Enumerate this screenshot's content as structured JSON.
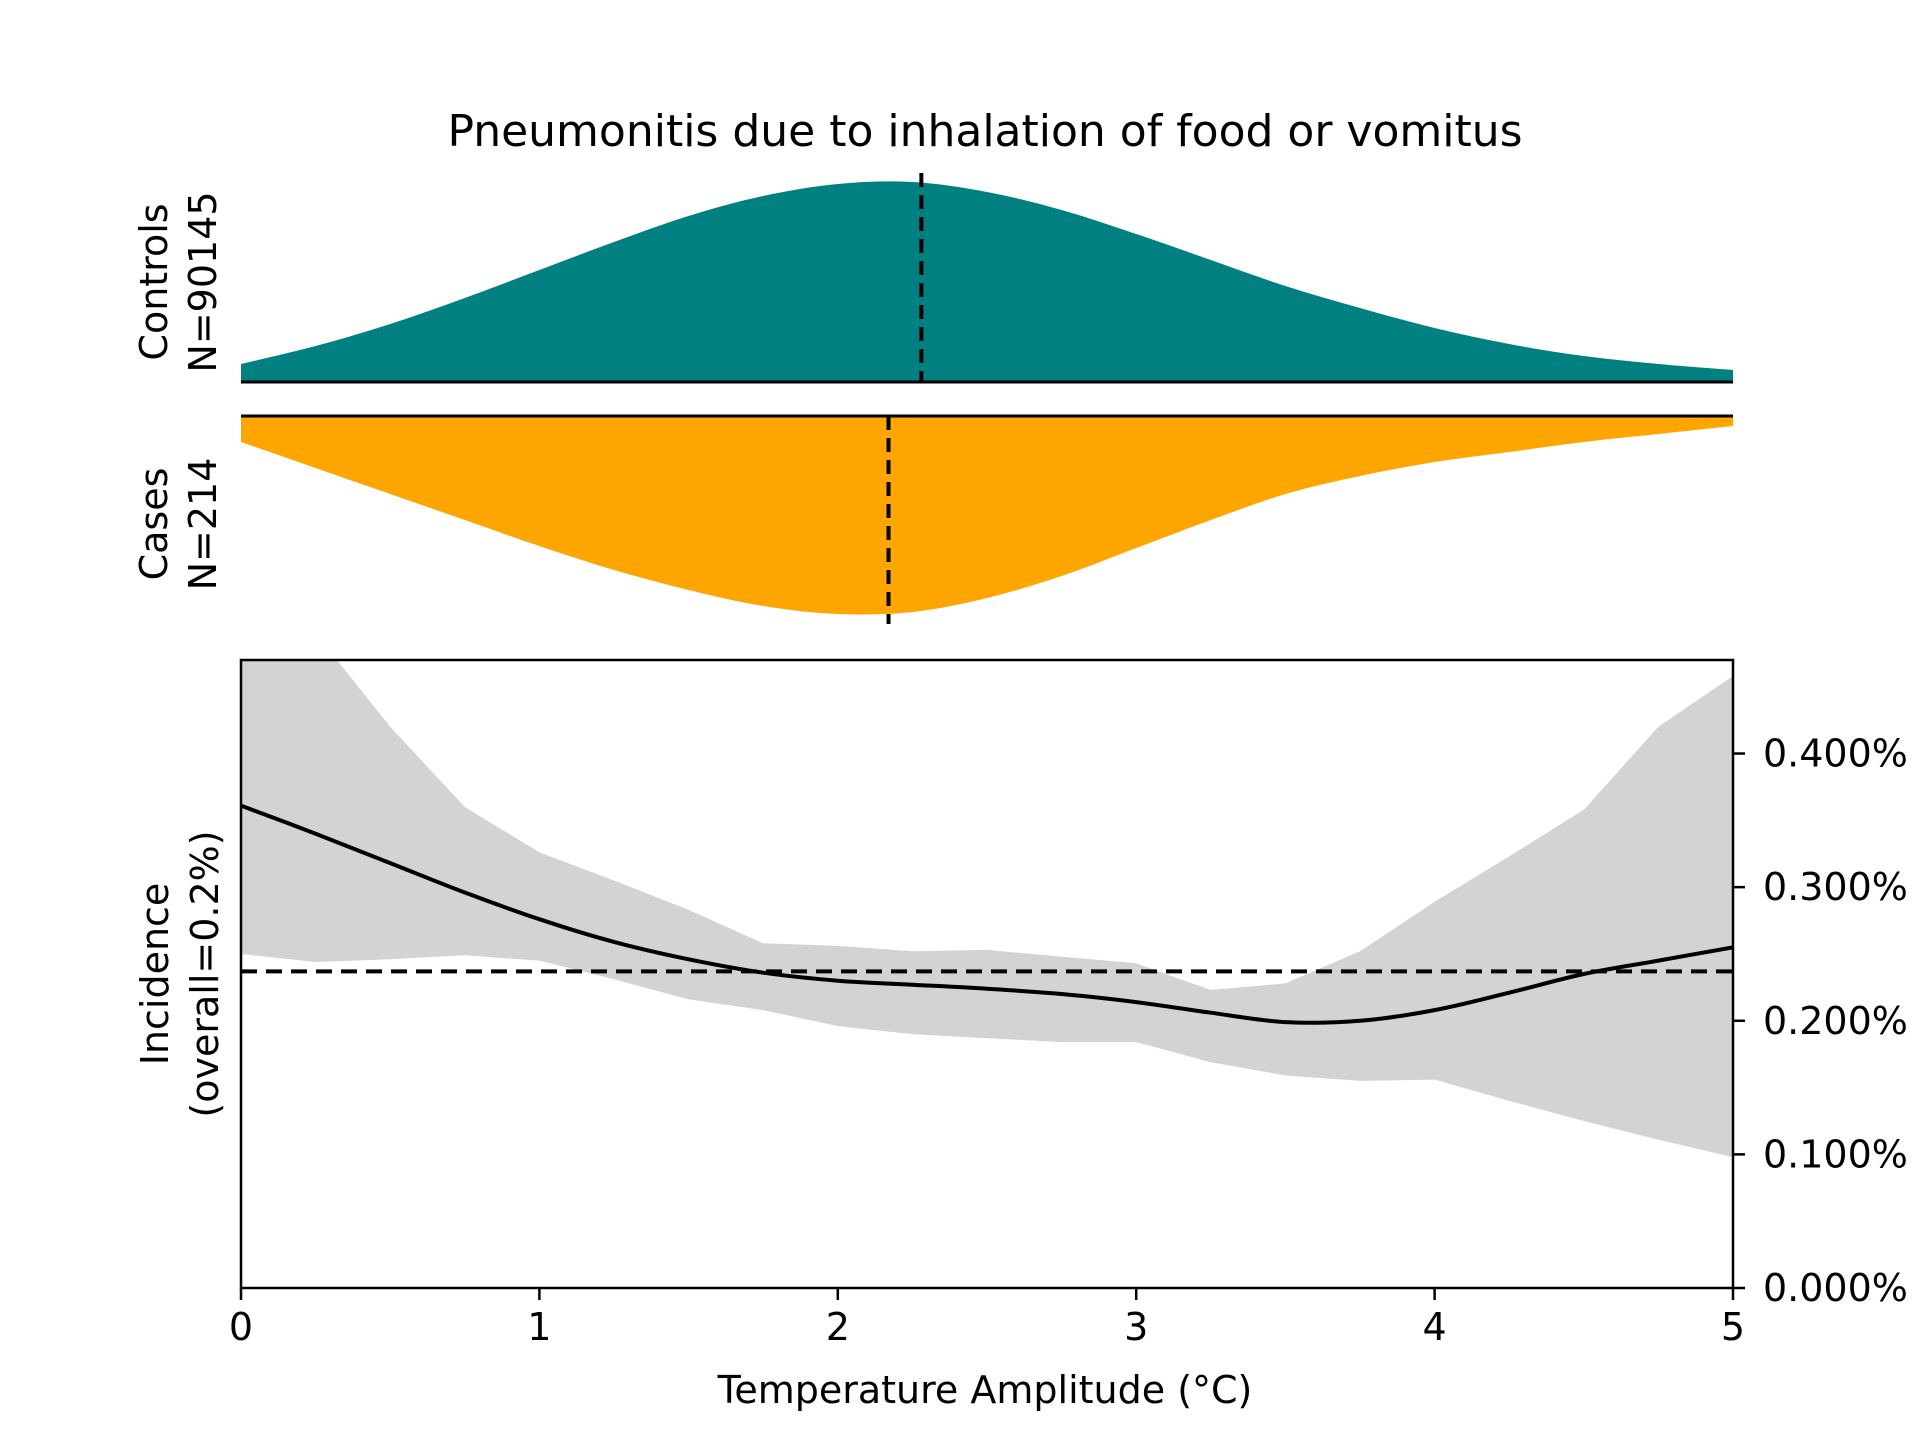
{
  "chart_data": {
    "type": "area",
    "title": "Pneumonitis due to inhalation of food or vomitus",
    "xlabel": "Temperature Amplitude (°C)",
    "xlim": [
      0,
      5
    ],
    "x_ticks": [
      "0",
      "1",
      "2",
      "3",
      "4",
      "5"
    ],
    "panels": {
      "controls": {
        "label_line1": "Controls",
        "label_line2": "N=90145",
        "color": "#008080",
        "median": 2.28,
        "density": {
          "x": [
            0,
            0.25,
            0.5,
            0.75,
            1,
            1.25,
            1.5,
            1.75,
            2,
            2.25,
            2.5,
            2.75,
            3,
            3.25,
            3.5,
            3.75,
            4,
            4.25,
            4.5,
            4.75,
            5
          ],
          "y": [
            0.09,
            0.18,
            0.29,
            0.42,
            0.56,
            0.7,
            0.83,
            0.93,
            0.99,
            1.0,
            0.95,
            0.86,
            0.74,
            0.61,
            0.48,
            0.37,
            0.27,
            0.19,
            0.13,
            0.09,
            0.06
          ]
        }
      },
      "cases": {
        "label_line1": "Cases",
        "label_line2": "N=214",
        "color": "#FFA500",
        "median": 2.17,
        "density": {
          "x": [
            0,
            0.25,
            0.5,
            0.75,
            1,
            1.25,
            1.5,
            1.75,
            2,
            2.25,
            2.5,
            2.75,
            3,
            3.25,
            3.5,
            3.75,
            4,
            4.25,
            4.5,
            4.75,
            5
          ],
          "y": [
            0.13,
            0.26,
            0.39,
            0.52,
            0.65,
            0.77,
            0.87,
            0.95,
            0.99,
            0.98,
            0.91,
            0.8,
            0.66,
            0.52,
            0.39,
            0.3,
            0.23,
            0.18,
            0.13,
            0.09,
            0.05
          ]
        }
      }
    },
    "incidence": {
      "ylabel_line1": "Incidence",
      "ylabel_line2": "(overall=0.2%)",
      "ylim": [
        0,
        0.0047
      ],
      "y_ticks": [
        {
          "value": 0,
          "label": "0.000%"
        },
        {
          "value": 0.001,
          "label": "0.100%"
        },
        {
          "value": 0.002,
          "label": "0.200%"
        },
        {
          "value": 0.003,
          "label": "0.300%"
        },
        {
          "value": 0.004,
          "label": "0.400%"
        }
      ],
      "overall": 0.00237,
      "line_color": "#000000",
      "band_color": "#D3D3D3",
      "x": [
        0,
        0.25,
        0.5,
        0.75,
        1,
        1.25,
        1.5,
        1.75,
        2,
        2.25,
        2.5,
        2.75,
        3,
        3.25,
        3.5,
        3.75,
        4,
        4.25,
        4.5,
        4.75,
        5
      ],
      "y": [
        0.00361,
        0.0034,
        0.00318,
        0.00296,
        0.00276,
        0.00259,
        0.00246,
        0.00236,
        0.0023,
        0.00227,
        0.00224,
        0.0022,
        0.00214,
        0.00206,
        0.00199,
        0.002,
        0.00208,
        0.00221,
        0.00235,
        0.00245,
        0.00255
      ],
      "upper": [
        0.0055,
        0.0049,
        0.0042,
        0.0036,
        0.00326,
        0.00305,
        0.00283,
        0.00258,
        0.00256,
        0.00252,
        0.00253,
        0.00248,
        0.00243,
        0.00223,
        0.00228,
        0.00252,
        0.00289,
        0.00323,
        0.00358,
        0.0042,
        0.00458
      ],
      "lower": [
        0.0025,
        0.00244,
        0.00246,
        0.00249,
        0.00245,
        0.00231,
        0.00216,
        0.00208,
        0.00196,
        0.0019,
        0.00187,
        0.00184,
        0.00184,
        0.00169,
        0.00159,
        0.00155,
        0.00156,
        0.0014,
        0.00125,
        0.00111,
        0.00098
      ]
    }
  }
}
